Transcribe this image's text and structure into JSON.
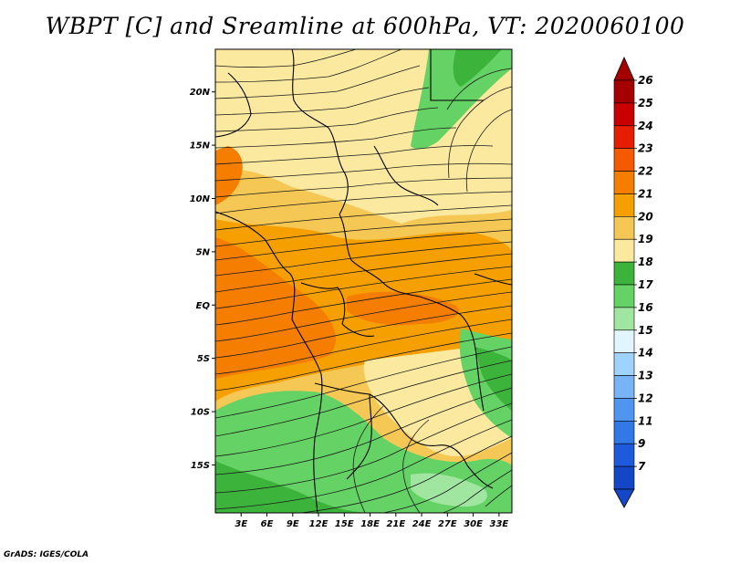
{
  "title": "WBPT [C] and Sreamline at 600hPa, VT: 2020060100",
  "credit": "GrADS: IGES/COLA",
  "lat_axis": {
    "labels": [
      "20N",
      "15N",
      "10N",
      "5N",
      "EQ",
      "5S",
      "10S",
      "15S"
    ],
    "values": [
      20,
      15,
      10,
      5,
      0,
      -5,
      -10,
      -15
    ],
    "range": [
      -19.5,
      24
    ]
  },
  "lon_axis": {
    "labels": [
      "3E",
      "6E",
      "9E",
      "12E",
      "15E",
      "18E",
      "21E",
      "24E",
      "27E",
      "30E",
      "33E"
    ],
    "values": [
      3,
      6,
      9,
      12,
      15,
      18,
      21,
      24,
      27,
      30,
      33
    ],
    "range": [
      0,
      34.5
    ]
  },
  "colorbar": {
    "labels": [
      "26",
      "25",
      "24",
      "23",
      "22",
      "21",
      "20",
      "19",
      "18",
      "17",
      "16",
      "15",
      "14",
      "13",
      "12",
      "11",
      "9",
      "7"
    ],
    "colors": [
      "#a50000",
      "#c80000",
      "#e61e00",
      "#f55a00",
      "#f57d00",
      "#f5a000",
      "#f5c855",
      "#fbe9a0",
      "#3cb43c",
      "#64d264",
      "#a0e6a0",
      "#e1f5ff",
      "#a0d2ff",
      "#78b4f5",
      "#5096f0",
      "#3278e6",
      "#1e5adc",
      "#1446c8"
    ]
  },
  "field_colors": {
    "c17": "#64d264",
    "c18": "#3cb43c",
    "c19": "#fbe9a0",
    "c20": "#f5c855",
    "c21": "#f5a000",
    "c22": "#f57d00",
    "c16": "#a0e6a0"
  }
}
